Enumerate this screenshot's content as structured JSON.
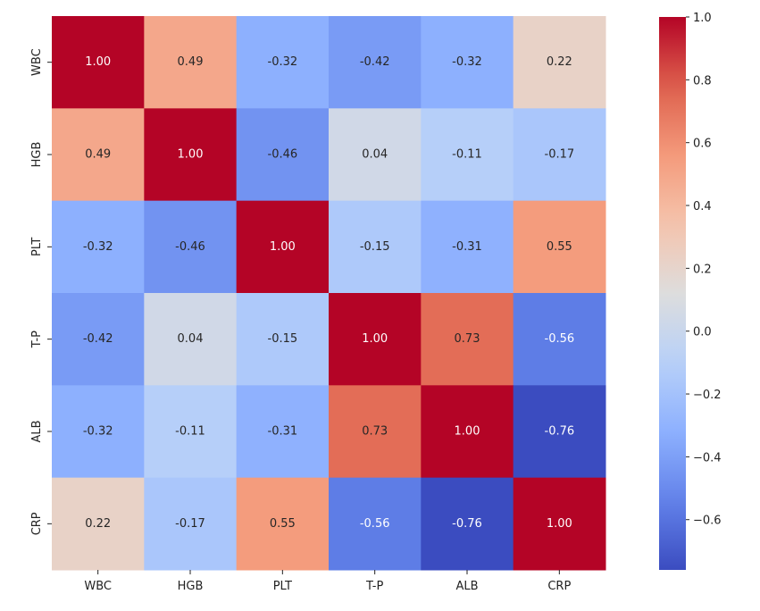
{
  "chart_data": {
    "type": "heatmap",
    "title": "",
    "xlabel": "",
    "ylabel": "",
    "x_labels": [
      "WBC",
      "HGB",
      "PLT",
      "T-P",
      "ALB",
      "CRP"
    ],
    "y_labels": [
      "WBC",
      "HGB",
      "PLT",
      "T-P",
      "ALB",
      "CRP"
    ],
    "values": [
      [
        1.0,
        0.49,
        -0.32,
        -0.42,
        -0.32,
        0.22
      ],
      [
        0.49,
        1.0,
        -0.46,
        0.04,
        -0.11,
        -0.17
      ],
      [
        -0.32,
        -0.46,
        1.0,
        -0.15,
        -0.31,
        0.55
      ],
      [
        -0.42,
        0.04,
        -0.15,
        1.0,
        0.73,
        -0.56
      ],
      [
        -0.32,
        -0.11,
        -0.31,
        0.73,
        1.0,
        -0.76
      ],
      [
        0.22,
        -0.17,
        0.55,
        -0.56,
        -0.76,
        1.0
      ]
    ],
    "annotations": [
      [
        "1.00",
        "0.49",
        "-0.32",
        "-0.42",
        "-0.32",
        "0.22"
      ],
      [
        "0.49",
        "1.00",
        "-0.46",
        "0.04",
        "-0.11",
        "-0.17"
      ],
      [
        "-0.32",
        "-0.46",
        "1.00",
        "-0.15",
        "-0.31",
        "0.55"
      ],
      [
        "-0.42",
        "0.04",
        "-0.15",
        "1.00",
        "0.73",
        "-0.56"
      ],
      [
        "-0.32",
        "-0.11",
        "-0.31",
        "0.73",
        "1.00",
        "-0.76"
      ],
      [
        "0.22",
        "-0.17",
        "0.55",
        "-0.56",
        "-0.76",
        "1.00"
      ]
    ],
    "colormap": "coolwarm",
    "vmin": -0.76,
    "vmax": 1.0,
    "colorbar": {
      "ticks": [
        1.0,
        0.8,
        0.6,
        0.4,
        0.2,
        0.0,
        -0.2,
        -0.4,
        -0.6
      ],
      "tick_labels": [
        "1.0",
        "0.8",
        "0.6",
        "0.4",
        "0.2",
        "0.0",
        "−0.2",
        "−0.4",
        "−0.6"
      ],
      "placement": "right"
    },
    "colors": {
      "low": "#3b4cc0",
      "mid": "#dddddd",
      "high": "#b40426",
      "text_dark": "#262626",
      "text_light": "#ffffff"
    }
  }
}
